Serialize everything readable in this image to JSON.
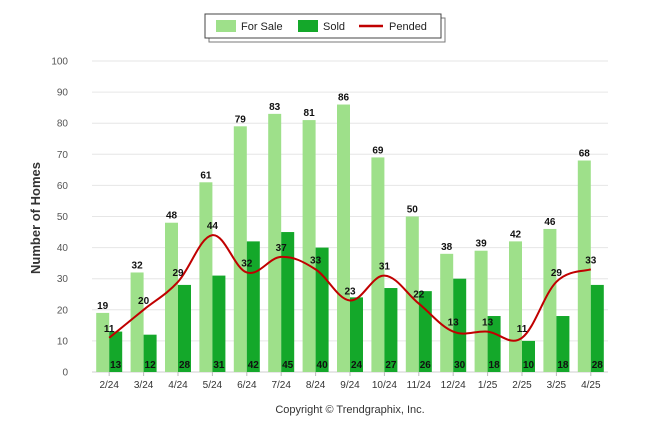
{
  "chart_data": {
    "type": "bar",
    "title": "",
    "ylabel": "Number of Homes",
    "xlabel": "",
    "ylim": [
      0,
      100
    ],
    "yticks": [
      0,
      10,
      20,
      30,
      40,
      50,
      60,
      70,
      80,
      90,
      100
    ],
    "grid": true,
    "legend_position": "top-center",
    "categories": [
      "2/24",
      "3/24",
      "4/24",
      "5/24",
      "6/24",
      "7/24",
      "8/24",
      "9/24",
      "10/24",
      "11/24",
      "12/24",
      "1/25",
      "2/25",
      "3/25",
      "4/25"
    ],
    "series": [
      {
        "name": "For Sale",
        "type": "bar",
        "color": "#9ee08a",
        "values": [
          19,
          32,
          48,
          61,
          79,
          83,
          81,
          86,
          69,
          50,
          38,
          39,
          42,
          46,
          68
        ]
      },
      {
        "name": "Sold",
        "type": "bar",
        "color": "#14a82a",
        "values": [
          13,
          12,
          28,
          31,
          42,
          45,
          40,
          24,
          27,
          26,
          30,
          18,
          10,
          18,
          28
        ]
      },
      {
        "name": "Pended",
        "type": "line",
        "color": "#c00000",
        "values": [
          11,
          20,
          29,
          44,
          32,
          37,
          33,
          23,
          31,
          22,
          13,
          13,
          11,
          29,
          33
        ]
      }
    ],
    "footer": "Copyright © Trendgraphix, Inc."
  }
}
